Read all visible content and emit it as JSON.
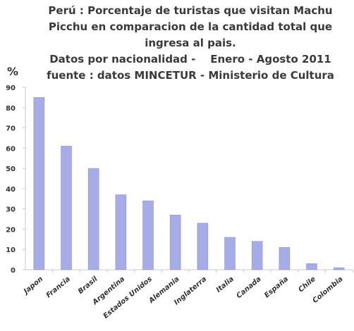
{
  "chart_data": {
    "type": "bar",
    "title": [
      "Perú : Porcentaje de turistas que visitan Machu",
      "Picchu en comparacion de la cantidad total que",
      "ingresa al pais.",
      "Datos por nacionalidad -    Enero - Agosto 2011",
      "fuente : datos MINCETUR - Ministerio de Cultura"
    ],
    "ylabel": "%",
    "xlabel": "",
    "ylim": [
      0,
      90
    ],
    "yticks": [
      0,
      10,
      20,
      30,
      40,
      50,
      60,
      70,
      80,
      90
    ],
    "categories": [
      "Japon",
      "Francia",
      "Brasil",
      "Argentina",
      "Estados Unidos",
      "Alemania",
      "Inglaterra",
      "Italia",
      "Canada",
      "España",
      "Chile",
      "Colombia"
    ],
    "values": [
      85,
      61,
      50,
      37,
      34,
      27,
      23,
      16,
      14,
      11,
      3,
      1
    ],
    "grid": false,
    "legend": "none",
    "colors": {
      "bar": "#a5ace6",
      "bar_edge": "#8f97d8",
      "axis": "#c9c9c9",
      "text": "#333333"
    }
  }
}
